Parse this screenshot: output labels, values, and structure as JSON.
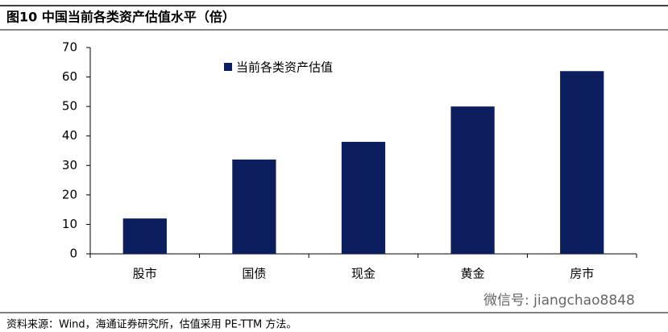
{
  "chart_data": {
    "type": "bar",
    "title": "图10 中国当前各类资产估值水平（倍）",
    "categories": [
      "股市",
      "国债",
      "现金",
      "黄金",
      "房市"
    ],
    "series": [
      {
        "name": "当前各类资产估值",
        "color": "#0d1e5f",
        "values": [
          12,
          32,
          38,
          50,
          62
        ]
      }
    ],
    "ylim": [
      0,
      70
    ],
    "yticks": [
      0,
      10,
      20,
      30,
      40,
      50,
      60,
      70
    ],
    "grid": false,
    "legend": "top",
    "source": "资料来源：Wind，海通证券研究所，估值采用 PE-TTM 方法。",
    "watermark": "微信号: jiangchao8848"
  }
}
